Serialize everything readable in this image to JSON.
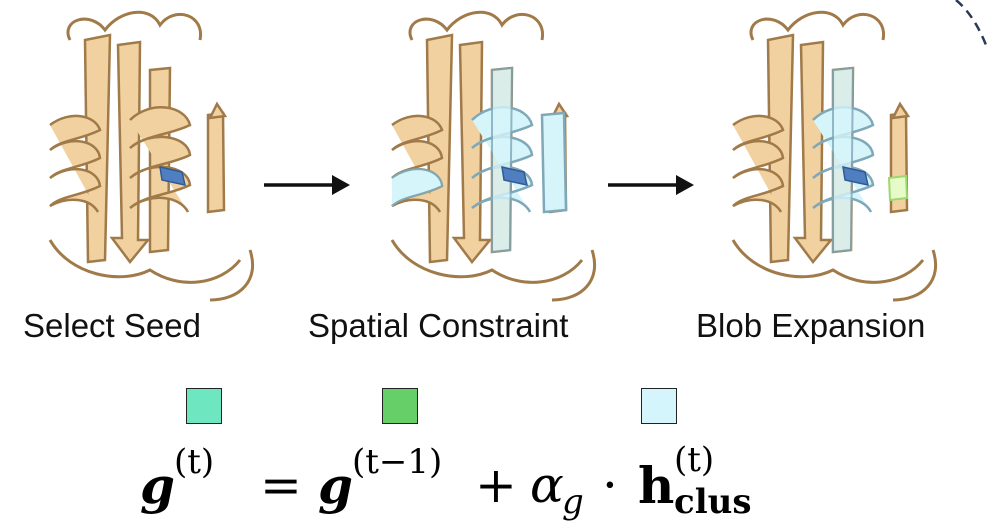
{
  "stages": [
    {
      "label": "Select Seed"
    },
    {
      "label": "Spatial Constraint"
    },
    {
      "label": "Blob Expansion"
    }
  ],
  "colors": {
    "protein": "#f2d1a0",
    "protein_stroke": "#a07a48",
    "seed": "#4f7fc0",
    "cluster": "#d6f5fb",
    "cluster_stroke": "#7fa8b8",
    "frontier": "#e6fbc8",
    "frontier_stroke": "#9ad96a",
    "swatch_1": "#6ee7c1",
    "swatch_2": "#67cf68",
    "swatch_3": "#d4f5fc"
  },
  "formula": {
    "lhs_var": "g",
    "lhs_sup": "(t)",
    "equals": "=",
    "rhs_var": "g",
    "rhs_sup": "(t−1)",
    "plus": "+",
    "alpha": "α",
    "alpha_sub": "g",
    "dot": "·",
    "h_var": "h",
    "h_sup": "(t)",
    "h_sub": "clus"
  }
}
